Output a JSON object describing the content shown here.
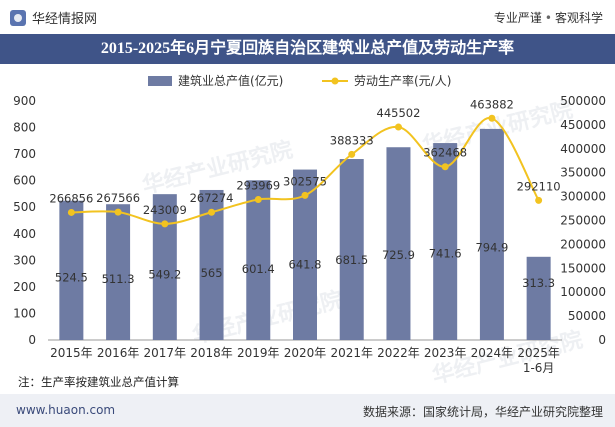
{
  "brand": {
    "name": "华经情报网"
  },
  "tagline": {
    "left": "专业严谨",
    "sep": "•",
    "right": "客观科学"
  },
  "title": "2015-2025年6月宁夏回族自治区建筑业总产值及劳动生产率",
  "footnote": "注：生产率按建筑业总产值计算",
  "footer": {
    "site": "www.huaon.com",
    "source": "数据来源：国家统计局，华经产业研究院整理"
  },
  "watermark": "华经产业研究院",
  "colors": {
    "bar": "#6e7ba3",
    "line": "#f2c320",
    "title_bg": "#3f5488"
  },
  "chart_data": {
    "type": "bar",
    "categories": [
      "2015年",
      "2016年",
      "2017年",
      "2018年",
      "2019年",
      "2020年",
      "2021年",
      "2022年",
      "2023年",
      "2024年",
      "2025年\n1-6月"
    ],
    "series": [
      {
        "name": "建筑业总产值(亿元)",
        "type": "bar",
        "axis": "left",
        "values": [
          524.5,
          511.3,
          549.2,
          565,
          601.4,
          641.8,
          681.5,
          725.9,
          741.6,
          794.9,
          313.3
        ],
        "labels": [
          "524.5",
          "511.3",
          "549.2",
          "565",
          "601.4",
          "641.8",
          "681.5",
          "725.9",
          "741.6",
          "794.9",
          "313.3"
        ]
      },
      {
        "name": "劳动生产率(元/人)",
        "type": "line",
        "axis": "right",
        "values": [
          266856,
          267566,
          243009,
          267274,
          293969,
          302575,
          388333,
          445502,
          362468,
          463882,
          292110
        ],
        "labels": [
          "266856",
          "267566",
          "243009",
          "267274",
          "293969",
          "302575",
          "388333",
          "445502",
          "362468",
          "463882",
          "292110"
        ]
      }
    ],
    "y_left": {
      "min": 0,
      "max": 900,
      "ticks": [
        "0",
        "100",
        "200",
        "300",
        "400",
        "500",
        "600",
        "700",
        "800",
        "900"
      ]
    },
    "y_right": {
      "min": 0,
      "max": 500000,
      "ticks": [
        "0",
        "50000",
        "100000",
        "150000",
        "200000",
        "250000",
        "300000",
        "350000",
        "400000",
        "450000",
        "500000"
      ]
    },
    "legend_position": "top",
    "grid": false
  }
}
